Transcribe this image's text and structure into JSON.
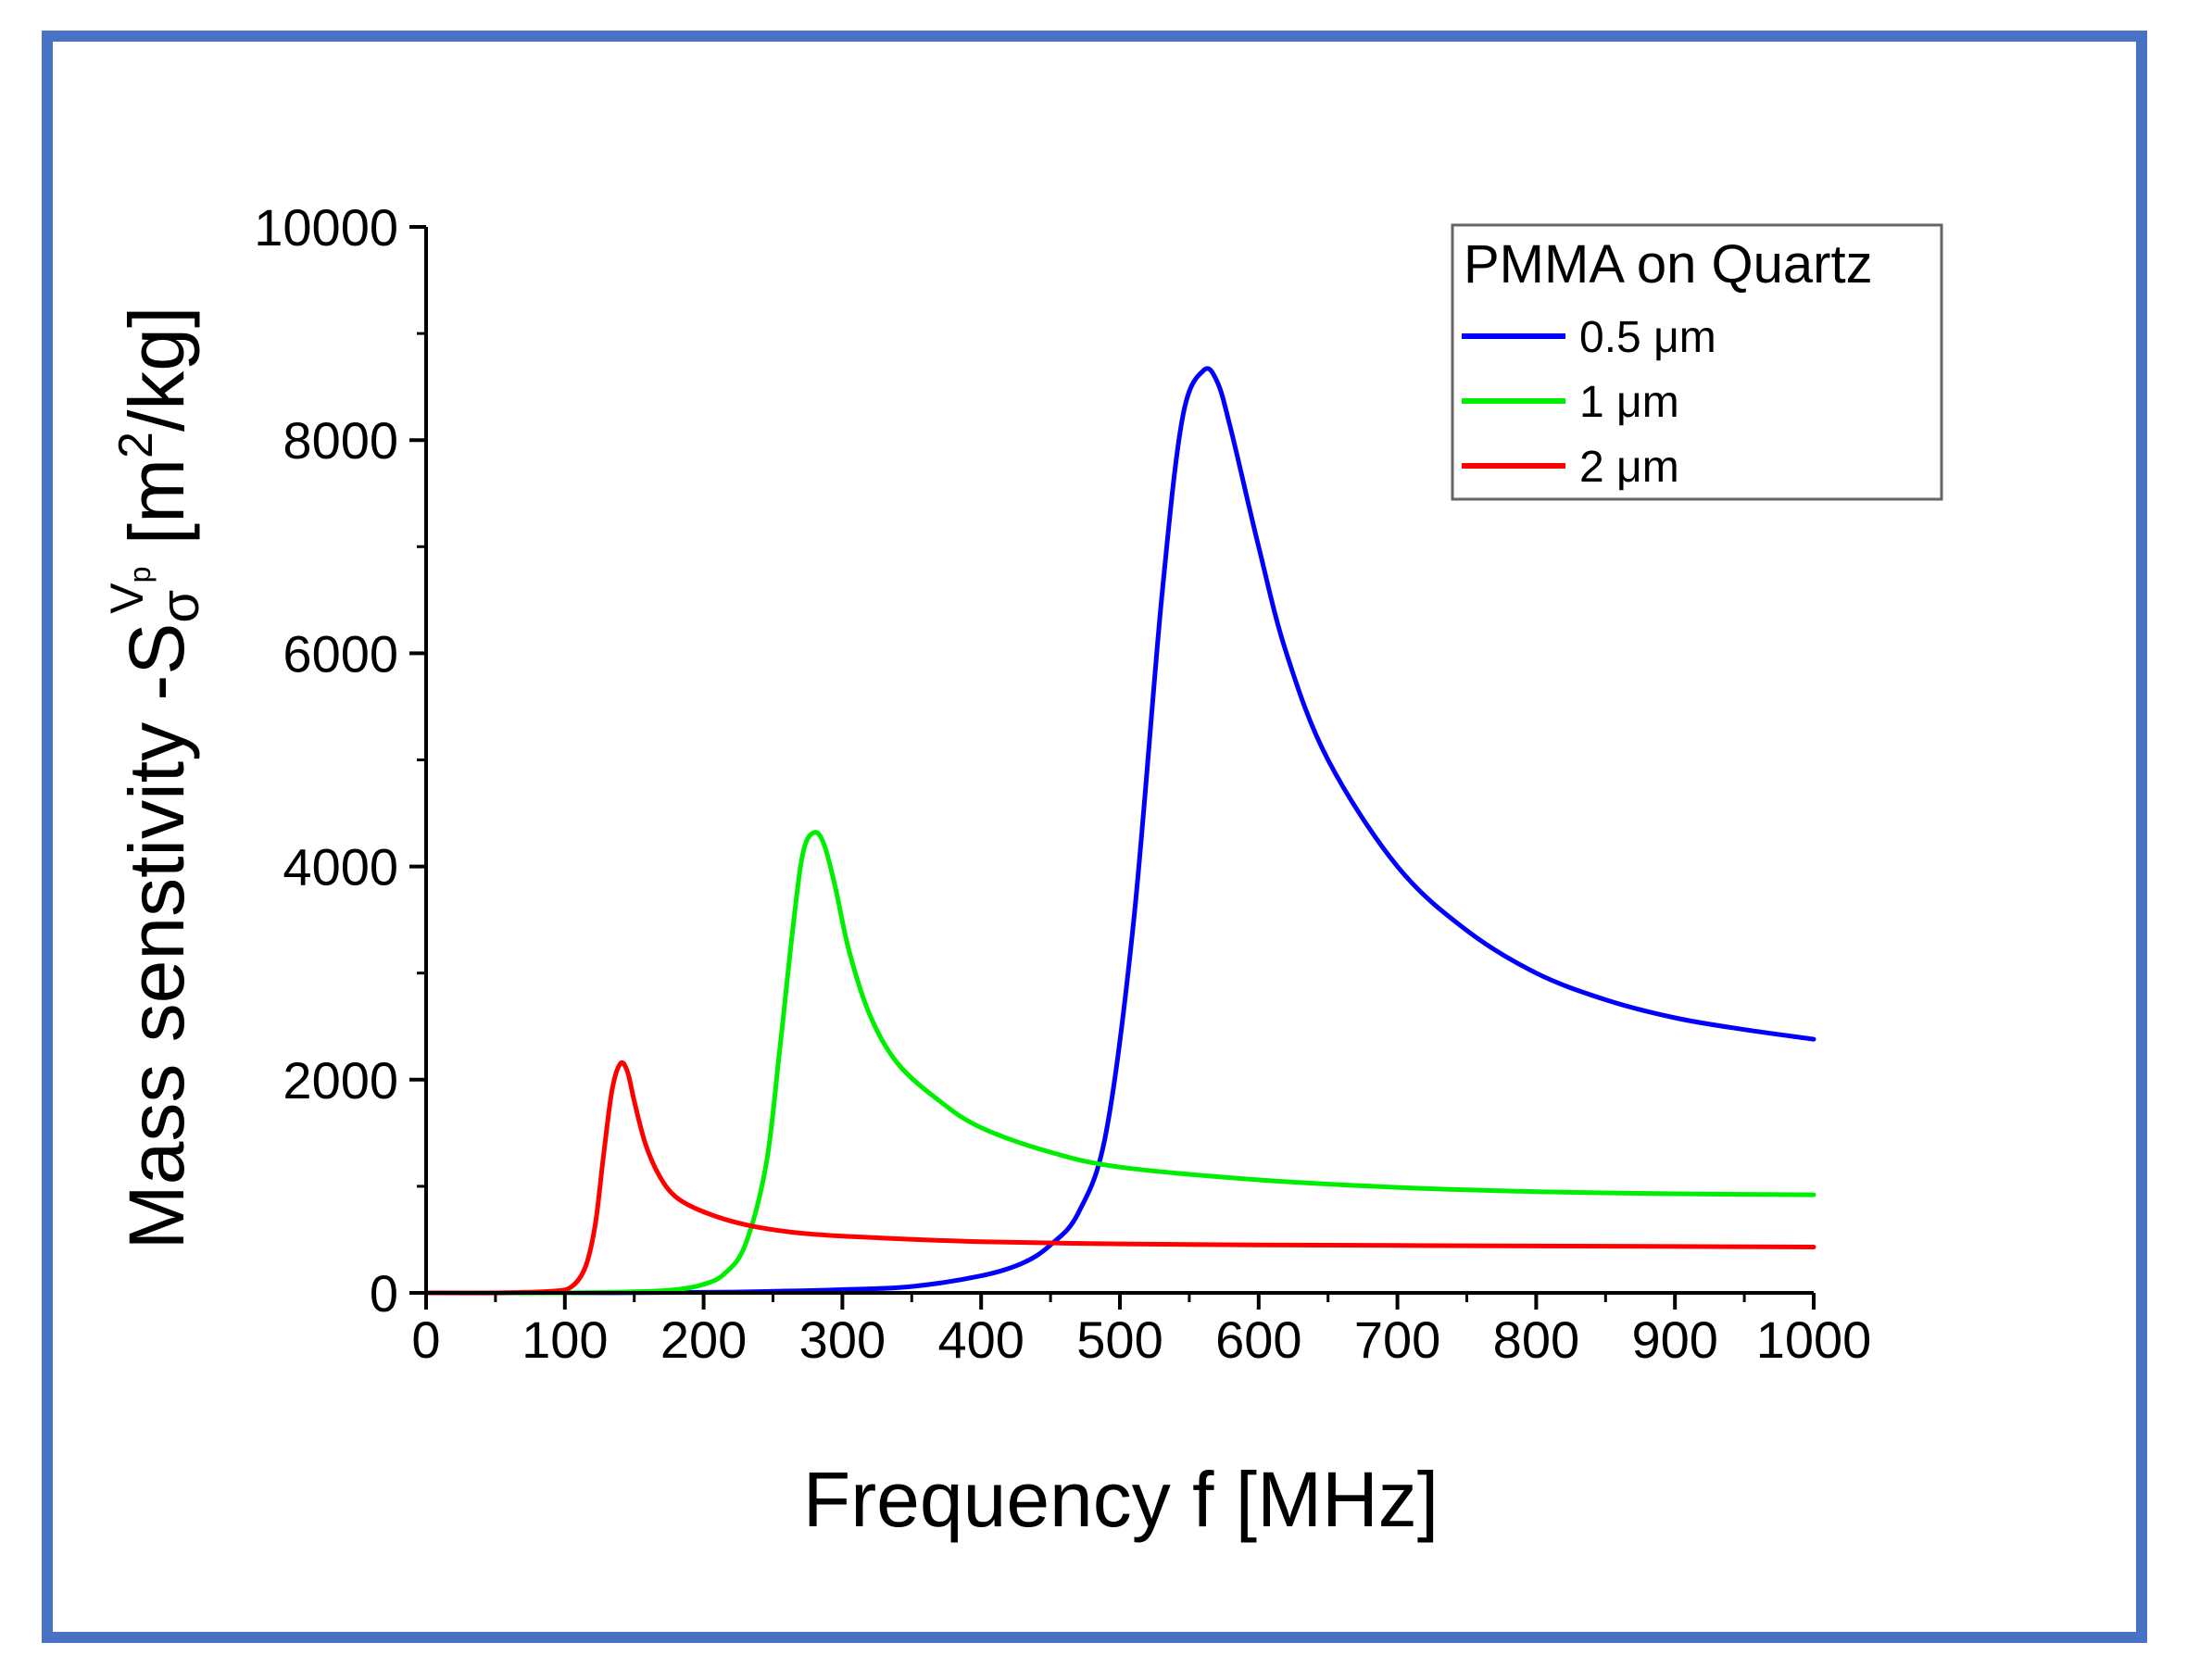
{
  "chart_data": {
    "type": "line",
    "title": "",
    "xlabel": "Frequency f [MHz]",
    "ylabel": {
      "prefix": "Mass senstivity  -S",
      "sub": "σ",
      "sup": "V",
      "supsub": "p",
      "unit_open": " [m",
      "unit_sup": "2",
      "unit_close": "/kg]"
    },
    "xlim": [
      0,
      1000
    ],
    "ylim": [
      0,
      10000
    ],
    "xticks": [
      0,
      100,
      200,
      300,
      400,
      500,
      600,
      700,
      800,
      900,
      1000
    ],
    "yticks": [
      0,
      2000,
      4000,
      6000,
      8000,
      10000
    ],
    "xtick_labels": [
      "0",
      "100",
      "200",
      "300",
      "400",
      "500",
      "600",
      "700",
      "800",
      "900",
      "1000"
    ],
    "ytick_labels": [
      "0",
      "2000",
      "4000",
      "6000",
      "8000",
      "10000"
    ],
    "grid": false,
    "legend": {
      "title": "PMMA on Quartz",
      "position": "top-right"
    },
    "series": [
      {
        "name": "0.5 μm",
        "color": "#0000ff",
        "x": [
          0,
          100,
          200,
          250,
          300,
          350,
          400,
          430,
          450,
          470,
          490,
          510,
          530,
          545,
          560,
          570,
          580,
          600,
          620,
          650,
          700,
          750,
          800,
          850,
          900,
          950,
          1000
        ],
        "y": [
          0,
          0,
          5,
          15,
          30,
          60,
          160,
          280,
          450,
          750,
          1500,
          3500,
          6500,
          8200,
          8650,
          8550,
          8100,
          7000,
          6000,
          5000,
          4000,
          3400,
          3000,
          2750,
          2580,
          2470,
          2380
        ]
      },
      {
        "name": "1 μm",
        "color": "#00ee00",
        "x": [
          0,
          100,
          150,
          180,
          200,
          215,
          230,
          245,
          255,
          265,
          272,
          280,
          287,
          295,
          305,
          320,
          340,
          370,
          400,
          450,
          500,
          600,
          700,
          800,
          900,
          1000
        ],
        "y": [
          0,
          0,
          10,
          30,
          80,
          180,
          450,
          1200,
          2300,
          3500,
          4150,
          4320,
          4200,
          3800,
          3200,
          2600,
          2150,
          1800,
          1550,
          1320,
          1180,
          1060,
          990,
          950,
          930,
          920
        ]
      },
      {
        "name": "2 μm",
        "color": "#ff0000",
        "x": [
          0,
          50,
          90,
          105,
          115,
          122,
          128,
          134,
          140,
          145,
          150,
          158,
          168,
          180,
          200,
          230,
          270,
          320,
          400,
          500,
          600,
          700,
          800,
          900,
          1000
        ],
        "y": [
          0,
          0,
          15,
          60,
          250,
          650,
          1300,
          1900,
          2150,
          2080,
          1800,
          1400,
          1100,
          900,
          760,
          640,
          560,
          520,
          480,
          460,
          450,
          445,
          440,
          435,
          430
        ]
      }
    ]
  }
}
